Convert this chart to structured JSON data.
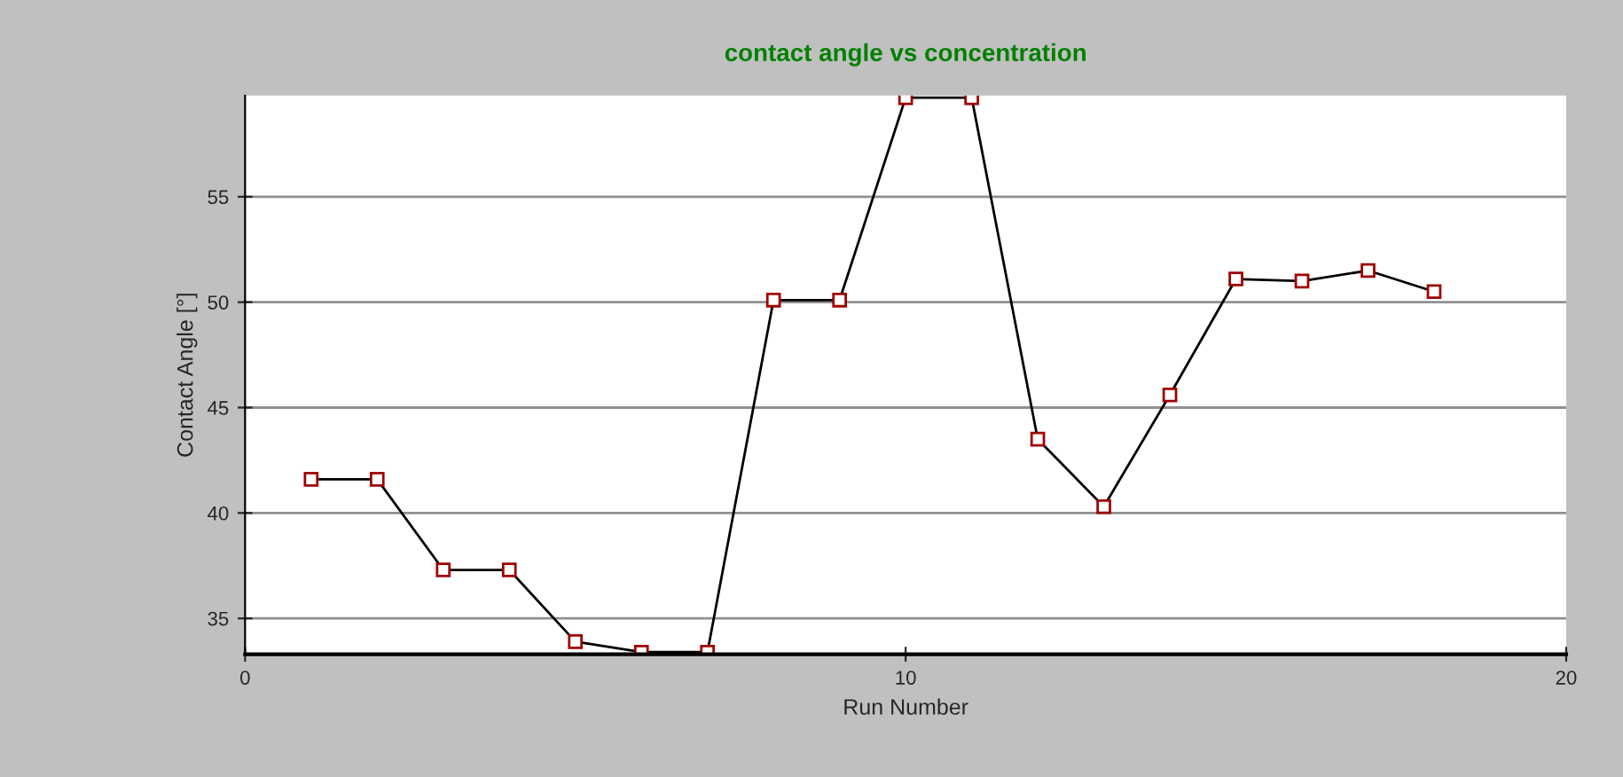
{
  "chart_data": {
    "type": "line",
    "title": "contact angle vs concentration",
    "xlabel": "Run Number",
    "ylabel": "Contact Angle [°]",
    "x": [
      1,
      2,
      3,
      4,
      5,
      6,
      7,
      8,
      9,
      10,
      11,
      12,
      13,
      14,
      15,
      16,
      17,
      18
    ],
    "series": [
      {
        "color": "#000000",
        "values": [
          41.6,
          41.6,
          37.3,
          37.3,
          33.9,
          33.4,
          33.4,
          50.1,
          50.1,
          59.7,
          59.7,
          43.5,
          40.3,
          45.6,
          51.1,
          51.0,
          51.5,
          50.5
        ]
      }
    ],
    "xlim": [
      0,
      20
    ],
    "xticks": [
      0,
      10,
      20
    ],
    "ylim": [
      33.3,
      59.8
    ],
    "yticks": [
      35,
      40,
      45,
      50,
      55
    ],
    "grid": "y",
    "marker": "square",
    "line_style": "solid"
  }
}
